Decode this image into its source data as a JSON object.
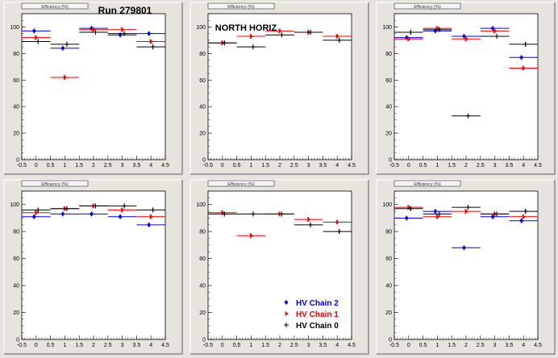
{
  "run_label": "Run 279801",
  "panel_title_text": "Efficiency (%)",
  "annotation": "NORTH HORIZ",
  "legend": [
    {
      "name": "HV Chain 2",
      "color": "#0000ee",
      "marker": "diamond"
    },
    {
      "name": "HV Chain 1",
      "color": "#ee0000",
      "marker": "arrow"
    },
    {
      "name": "HV Chain 0",
      "color": "#000000",
      "marker": "plus"
    }
  ],
  "chart_data": [
    {
      "type": "scatter",
      "xlim": [
        -0.5,
        4.5
      ],
      "ylim": [
        0,
        110
      ],
      "xticks": [
        "-0.5",
        "0",
        "0.5",
        "1",
        "1.5",
        "2",
        "2.5",
        "3",
        "3.5",
        "4",
        "4.5"
      ],
      "yticks": [
        "0",
        "20",
        "40",
        "60",
        "80",
        "100"
      ],
      "x": [
        0,
        1,
        2,
        3,
        4
      ],
      "series": [
        {
          "name": "HV Chain 2",
          "values": [
            97,
            84,
            99,
            94,
            95
          ]
        },
        {
          "name": "HV Chain 1",
          "values": [
            92,
            62,
            98,
            98,
            89
          ]
        },
        {
          "name": "HV Chain 0",
          "values": [
            89,
            87,
            96,
            95,
            85
          ]
        }
      ]
    },
    {
      "type": "scatter",
      "xlim": [
        -0.5,
        4.5
      ],
      "ylim": [
        0,
        110
      ],
      "xticks": [
        "-0.5",
        "0",
        "0.5",
        "1",
        "1.5",
        "2",
        "2.5",
        "3",
        "3.5",
        "4",
        "4.5"
      ],
      "yticks": [
        "0",
        "20",
        "40",
        "60",
        "80",
        "100"
      ],
      "x": [
        0,
        1,
        2,
        3,
        4
      ],
      "series": [
        {
          "name": "HV Chain 1",
          "values": [
            88,
            93,
            97,
            96,
            93
          ]
        },
        {
          "name": "HV Chain 0",
          "values": [
            88,
            85,
            94,
            96,
            90
          ]
        }
      ]
    },
    {
      "type": "scatter",
      "xlim": [
        -0.5,
        4.5
      ],
      "ylim": [
        0,
        110
      ],
      "xticks": [
        "-0.5",
        "0",
        "0.5",
        "1",
        "1.5",
        "2",
        "2.5",
        "3",
        "3.5",
        "4",
        "4.5"
      ],
      "yticks": [
        "0",
        "20",
        "40",
        "60",
        "80",
        "100"
      ],
      "x": [
        0,
        1,
        2,
        3,
        4
      ],
      "series": [
        {
          "name": "HV Chain 2",
          "values": [
            92,
            97,
            93,
            99,
            77
          ]
        },
        {
          "name": "HV Chain 1",
          "values": [
            91,
            99,
            91,
            97,
            69
          ]
        },
        {
          "name": "HV Chain 0",
          "values": [
            96,
            98,
            33,
            93,
            87
          ]
        }
      ]
    },
    {
      "type": "scatter",
      "xlim": [
        -0.5,
        4.5
      ],
      "ylim": [
        0,
        110
      ],
      "xticks": [
        "-0.5",
        "0",
        "0.5",
        "1",
        "1.5",
        "2",
        "2.5",
        "3",
        "3.5",
        "4",
        "4.5"
      ],
      "yticks": [
        "0",
        "20",
        "40",
        "60",
        "80",
        "100"
      ],
      "x": [
        0,
        1,
        2,
        3,
        4
      ],
      "series": [
        {
          "name": "HV Chain 2",
          "values": [
            91,
            93,
            93,
            91,
            85
          ]
        },
        {
          "name": "HV Chain 1",
          "values": [
            94,
            97,
            99,
            96,
            91
          ]
        },
        {
          "name": "HV Chain 0",
          "values": [
            96,
            97,
            99,
            99,
            96
          ]
        }
      ]
    },
    {
      "type": "scatter",
      "xlim": [
        -0.5,
        4.5
      ],
      "ylim": [
        0,
        110
      ],
      "xticks": [
        "-0.5",
        "0",
        "0.5",
        "1",
        "1.5",
        "2",
        "2.5",
        "3",
        "3.5",
        "4",
        "4.5"
      ],
      "yticks": [
        "0",
        "20",
        "40",
        "60",
        "80",
        "100"
      ],
      "x": [
        0,
        1,
        2,
        3,
        4
      ],
      "series": [
        {
          "name": "HV Chain 1",
          "values": [
            94,
            77,
            93,
            89,
            87
          ]
        },
        {
          "name": "HV Chain 0",
          "values": [
            93,
            93,
            93,
            85,
            80
          ]
        }
      ]
    },
    {
      "type": "scatter",
      "xlim": [
        -0.5,
        4.5
      ],
      "ylim": [
        0,
        110
      ],
      "xticks": [
        "-0.5",
        "0",
        "0.5",
        "1",
        "1.5",
        "2",
        "2.5",
        "3",
        "3.5",
        "4",
        "4.5"
      ],
      "yticks": [
        "0",
        "20",
        "40",
        "60",
        "80",
        "100"
      ],
      "x": [
        0,
        1,
        2,
        3,
        4
      ],
      "series": [
        {
          "name": "HV Chain 2",
          "values": [
            90,
            95,
            68,
            91,
            88
          ]
        },
        {
          "name": "HV Chain 1",
          "values": [
            98,
            91,
            95,
            93,
            91
          ]
        },
        {
          "name": "HV Chain 0",
          "values": [
            97,
            93,
            98,
            93,
            95
          ]
        }
      ]
    }
  ]
}
